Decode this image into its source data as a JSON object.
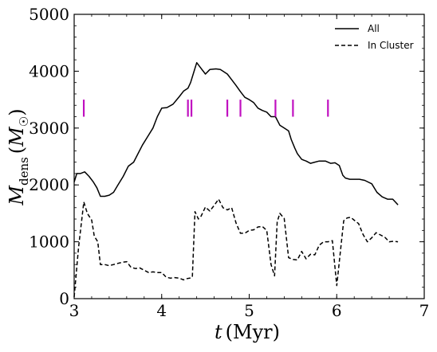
{
  "chart_data": {
    "type": "line",
    "xlabel": "t (Myr)",
    "ylabel": "M_dens (M_☉)",
    "xlim": [
      3,
      7
    ],
    "ylim": [
      0,
      5000
    ],
    "x_ticks": [
      "3",
      "4",
      "5",
      "6",
      "7"
    ],
    "y_ticks": [
      "0",
      "1000",
      "2000",
      "3000",
      "4000",
      "5000"
    ],
    "legend_position": "top-right",
    "series": [
      {
        "name": "All",
        "style": "solid",
        "color": "#000000",
        "x": [
          3.0,
          3.03,
          3.07,
          3.12,
          3.17,
          3.22,
          3.26,
          3.3,
          3.35,
          3.4,
          3.45,
          3.5,
          3.56,
          3.62,
          3.68,
          3.73,
          3.78,
          3.84,
          3.9,
          3.95,
          4.0,
          4.06,
          4.13,
          4.2,
          4.25,
          4.3,
          4.33,
          4.37,
          4.4,
          4.45,
          4.5,
          4.55,
          4.62,
          4.67,
          4.7,
          4.75,
          4.8,
          4.85,
          4.9,
          4.95,
          5.0,
          5.05,
          5.1,
          5.15,
          5.2,
          5.25,
          5.3,
          5.35,
          5.4,
          5.45,
          5.48,
          5.52,
          5.55,
          5.6,
          5.65,
          5.7,
          5.75,
          5.8,
          5.87,
          5.93,
          5.98,
          6.03,
          6.07,
          6.1,
          6.15,
          6.2,
          6.26,
          6.32,
          6.4,
          6.46,
          6.52,
          6.58,
          6.64,
          6.7
        ],
        "values": [
          2050,
          2200,
          2200,
          2230,
          2150,
          2050,
          1950,
          1800,
          1800,
          1820,
          1870,
          2000,
          2150,
          2330,
          2400,
          2550,
          2700,
          2850,
          3000,
          3200,
          3350,
          3360,
          3420,
          3550,
          3650,
          3700,
          3800,
          4000,
          4150,
          4050,
          3950,
          4030,
          4040,
          4030,
          4000,
          3950,
          3850,
          3750,
          3640,
          3540,
          3500,
          3450,
          3350,
          3310,
          3280,
          3200,
          3200,
          3050,
          3000,
          2950,
          2800,
          2650,
          2550,
          2450,
          2420,
          2380,
          2400,
          2420,
          2420,
          2380,
          2390,
          2340,
          2170,
          2120,
          2100,
          2100,
          2100,
          2080,
          2020,
          1870,
          1790,
          1750,
          1750,
          1650
        ]
      },
      {
        "name": "In Cluster",
        "style": "dashed",
        "color": "#000000",
        "x": [
          3.0,
          3.05,
          3.11,
          3.15,
          3.2,
          3.23,
          3.27,
          3.3,
          3.35,
          3.4,
          3.45,
          3.5,
          3.55,
          3.6,
          3.65,
          3.7,
          3.75,
          3.8,
          3.85,
          3.9,
          3.95,
          4.0,
          4.05,
          4.1,
          4.15,
          4.2,
          4.25,
          4.28,
          4.32,
          4.35,
          4.38,
          4.42,
          4.45,
          4.5,
          4.55,
          4.6,
          4.65,
          4.7,
          4.75,
          4.8,
          4.85,
          4.9,
          4.95,
          5.0,
          5.05,
          5.1,
          5.15,
          5.2,
          5.25,
          5.29,
          5.32,
          5.35,
          5.4,
          5.45,
          5.5,
          5.55,
          5.6,
          5.65,
          5.7,
          5.75,
          5.8,
          5.85,
          5.9,
          5.95,
          6.0,
          6.05,
          6.08,
          6.12,
          6.16,
          6.2,
          6.25,
          6.3,
          6.35,
          6.4,
          6.45,
          6.5,
          6.55,
          6.6,
          6.65,
          6.7
        ],
        "values": [
          30,
          900,
          1700,
          1500,
          1380,
          1100,
          1000,
          600,
          600,
          580,
          600,
          620,
          640,
          650,
          550,
          530,
          540,
          500,
          460,
          470,
          460,
          460,
          380,
          360,
          370,
          360,
          330,
          350,
          360,
          380,
          1530,
          1400,
          1450,
          1610,
          1540,
          1640,
          1750,
          1600,
          1560,
          1600,
          1330,
          1150,
          1150,
          1200,
          1210,
          1260,
          1270,
          1200,
          600,
          400,
          1350,
          1500,
          1410,
          720,
          690,
          680,
          830,
          700,
          780,
          770,
          940,
          1000,
          1000,
          1020,
          230,
          940,
          1370,
          1420,
          1430,
          1380,
          1320,
          1130,
          1000,
          1070,
          1160,
          1120,
          1080,
          1000,
          1010,
          1000
        ]
      }
    ],
    "markers": {
      "style": "vertical ticks",
      "color": "#c010c0",
      "y_range": [
        3200,
        3500
      ],
      "x": [
        3.11,
        4.3,
        4.34,
        4.75,
        4.9,
        5.3,
        5.5,
        5.9
      ]
    }
  }
}
